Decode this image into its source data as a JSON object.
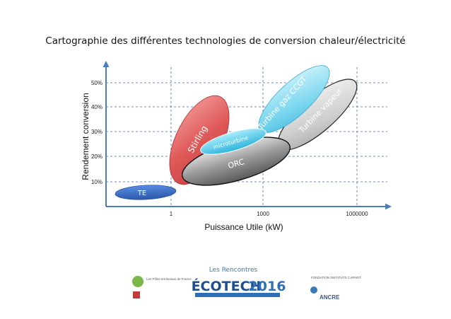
{
  "chart_data": {
    "type": "area",
    "title": "Cartographie des différentes technologies de conversion chaleur/électricité",
    "xlabel": "Puissance Utile (kW)",
    "ylabel": "Rendement conversion",
    "x_scale": "log",
    "x_ticks": [
      "1",
      "1000",
      "1000000"
    ],
    "y_ticks": [
      "10%",
      "20%",
      "30%",
      "40%",
      "50%"
    ],
    "grid": true,
    "series": [
      {
        "name": "TE",
        "color": "#3a6fc4",
        "x_range_kW": [
          0.03,
          3
        ],
        "y_range": [
          2,
          9
        ]
      },
      {
        "name": "Stirling",
        "color": "#e0585a",
        "x_range_kW": [
          0.9,
          150
        ],
        "y_range": [
          7,
          45
        ]
      },
      {
        "name": "ORC",
        "color": "#8a8a8a",
        "x_range_kW": [
          1.5,
          30000
        ],
        "y_range": [
          8,
          27
        ]
      },
      {
        "name": "microturbine",
        "color": "#4fc8e8",
        "x_range_kW": [
          8,
          3000
        ],
        "y_range": [
          18,
          30
        ]
      },
      {
        "name": "Turbine gaz CCGT",
        "color": "#7fd8f0",
        "x_range_kW": [
          500,
          1000000
        ],
        "y_range": [
          28,
          57
        ]
      },
      {
        "name": "Turbine vapeur",
        "color": "#c8c8c8",
        "x_range_kW": [
          5000,
          10000000
        ],
        "y_range": [
          22,
          52
        ]
      }
    ]
  },
  "footer": {
    "left_logo_text": "Les Pôles territoriaux de France",
    "center_logo_top": "Les Rencontres",
    "center_logo_main": "ÉCOTECH",
    "center_logo_year": "2016",
    "right_logo_top": "FONDATION INSTITUTS CARNOT",
    "right_logo_bottom": "ANCRE"
  }
}
